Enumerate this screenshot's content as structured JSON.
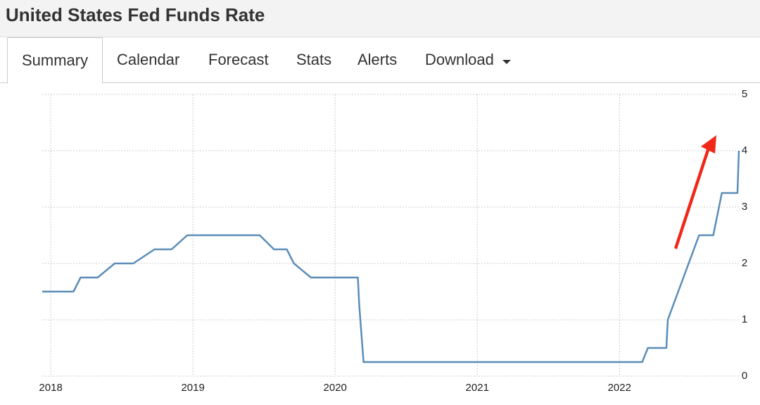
{
  "header": {
    "title": "United States Fed Funds Rate"
  },
  "tabs": [
    "Summary",
    "Calendar",
    "Forecast",
    "Stats",
    "Alerts",
    "Download"
  ],
  "chart_data": {
    "type": "line",
    "color": "#5b8db8",
    "grid": true,
    "x": [
      2017.94,
      2018.16,
      2018.21,
      2018.33,
      2018.45,
      2018.58,
      2018.73,
      2018.85,
      2018.96,
      2019.47,
      2019.57,
      2019.66,
      2019.71,
      2019.83,
      2020.16,
      2020.17,
      2020.2,
      2022.16,
      2022.2,
      2022.33,
      2022.34,
      2022.56,
      2022.66,
      2022.72,
      2022.83,
      2022.84
    ],
    "values": [
      1.5,
      1.5,
      1.75,
      1.75,
      2,
      2,
      2.25,
      2.25,
      2.5,
      2.5,
      2.25,
      2.25,
      2,
      1.75,
      1.75,
      1.25,
      0.25,
      0.25,
      0.5,
      0.5,
      1,
      2.5,
      2.5,
      3.25,
      3.25,
      4
    ],
    "xlim": [
      2017.94,
      2022.84
    ],
    "xticks": [
      2018,
      2019,
      2020,
      2021,
      2022
    ],
    "ylim": [
      0,
      5
    ],
    "yticks": [
      0,
      1,
      2,
      3,
      4,
      5
    ]
  }
}
